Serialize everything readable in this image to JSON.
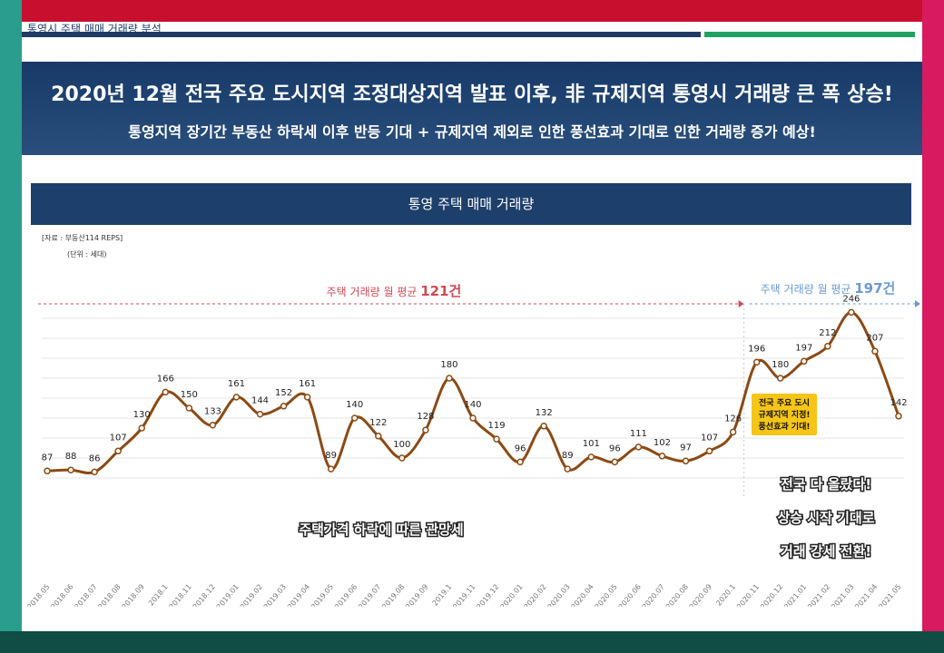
{
  "header": {
    "top_caption": "통영시 주택 매매 거래량 분석"
  },
  "banner": {
    "headline": "2020년 12월 전국 주요 도시지역 조정대상지역 발표 이후, 非 규제지역  통영시 거래량 큰 폭 상승!",
    "subline": "통영지역 장기간 부동산 하락세 이후 반등 기대 + 규제지역 제외로 인한 풍선효과 기대로 인한 거래량 증가 예상!"
  },
  "chart_title": "통영 주택 매매 거래량",
  "source_note": "[자료 : 부동산114 REPS]",
  "unit_note": "(단위 : 세대)",
  "colors": {
    "line": "#8b4a14",
    "avg1": "#d04a55",
    "avg2": "#6d9ad0",
    "callout_bg": "#f5c518"
  },
  "chart_data": {
    "type": "line",
    "title": "통영 주택 매매 거래량",
    "categories": [
      "2018.05",
      "2018.06",
      "2018.07",
      "2018.08",
      "2018.09",
      "2018.1",
      "2018.11",
      "2018.12",
      "2019.01",
      "2019.02",
      "2019.03",
      "2019.04",
      "2019.05",
      "2019.06",
      "2019.07",
      "2019.08",
      "2019.09",
      "2019.1",
      "2019.11",
      "2019.12",
      "2020.01",
      "2020.02",
      "2020.03",
      "2020.04",
      "2020.05",
      "2020.06",
      "2020.07",
      "2020.08",
      "2020.09",
      "2020.1",
      "2020.11",
      "2020.12",
      "2021.01",
      "2021.02",
      "2021.03",
      "2021.04",
      "2021.05"
    ],
    "values": [
      87,
      88,
      86,
      107,
      130,
      166,
      150,
      133,
      161,
      144,
      152,
      161,
      89,
      140,
      122,
      100,
      128,
      180,
      140,
      119,
      96,
      132,
      89,
      101,
      96,
      111,
      102,
      97,
      107,
      126,
      196,
      180,
      197,
      212,
      246,
      207,
      142
    ],
    "series": [
      {
        "values": [
          87,
          88,
          86,
          107,
          130,
          166,
          150,
          133,
          161,
          144,
          152,
          161,
          89,
          140,
          122,
          100,
          128,
          180,
          140,
          119,
          96,
          132,
          89,
          101,
          96,
          111,
          102,
          97,
          107,
          126,
          196,
          180,
          197,
          212,
          246,
          207,
          142
        ]
      }
    ],
    "ylim": [
      60,
      260
    ],
    "grid": true,
    "annotations": {
      "avg_before_label": "주택 거래량 월 평균",
      "avg_before_value": "121건",
      "avg_after_label": "주택 거래량 월 평균",
      "avg_after_value": "197건",
      "callout_lines": [
        "전국 주요 도시",
        "규제지역 지정!",
        "풍선효과 기대!"
      ],
      "lower_left_note": "주택가격 하락에 따른 관망세",
      "right_notes": [
        "전국 다 올랐다!",
        "상승 시작 기대로",
        "거래 강세 전환!"
      ]
    }
  }
}
